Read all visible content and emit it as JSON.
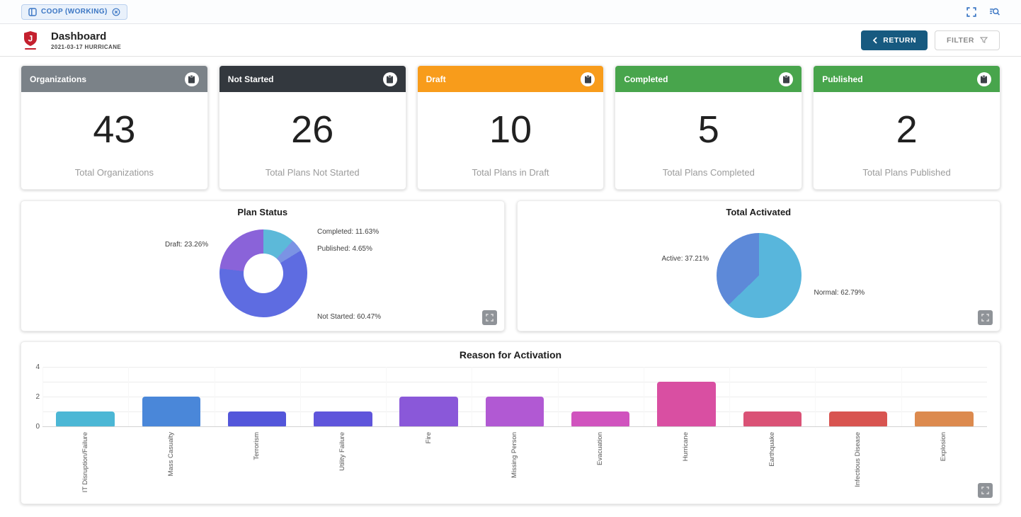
{
  "topbar": {
    "chip_label": "COOP (WORKING)",
    "icons": {
      "chip_leading": "layout-grid",
      "chip_trailing": "close-circle",
      "right_1": "fullscreen",
      "right_2": "search-preview"
    }
  },
  "header": {
    "title": "Dashboard",
    "subtitle": "2021-03-17 HURRICANE",
    "return_label": "RETURN",
    "filter_label": "FILTER"
  },
  "stats": [
    {
      "title": "Organizations",
      "value": "43",
      "label": "Total Organizations",
      "color": "#7b8288"
    },
    {
      "title": "Not Started",
      "value": "26",
      "label": "Total Plans Not Started",
      "color": "#33383e"
    },
    {
      "title": "Draft",
      "value": "10",
      "label": "Total Plans in Draft",
      "color": "#f89c1b"
    },
    {
      "title": "Completed",
      "value": "5",
      "label": "Total Plans Completed",
      "color": "#48a54c"
    },
    {
      "title": "Published",
      "value": "2",
      "label": "Total Plans Published",
      "color": "#48a54c"
    }
  ],
  "chart_data": [
    {
      "type": "pie",
      "title": "Plan Status",
      "donut": true,
      "legend_position": "none",
      "slices": [
        {
          "label": "Completed",
          "value": 11.63,
          "color": "#5cb9d9",
          "text": "Completed: 11.63%"
        },
        {
          "label": "Published",
          "value": 4.65,
          "color": "#7b93e4",
          "text": "Published: 4.65%"
        },
        {
          "label": "Not Started",
          "value": 60.47,
          "color": "#5e6ce1",
          "text": "Not Started: 60.47%"
        },
        {
          "label": "Draft",
          "value": 23.26,
          "color": "#8a63d9",
          "text": "Draft: 23.26%"
        }
      ]
    },
    {
      "type": "pie",
      "title": "Total Activated",
      "donut": false,
      "legend_position": "none",
      "slices": [
        {
          "label": "Normal",
          "value": 62.79,
          "color": "#58b6dc",
          "text": "Normal: 62.79%"
        },
        {
          "label": "Active",
          "value": 37.21,
          "color": "#5d89d8",
          "text": "Active: 37.21%"
        }
      ]
    },
    {
      "type": "bar",
      "title": "Reason for Activation",
      "categories": [
        "IT Disruption/Failure",
        "Mass Casualty",
        "Terrorism",
        "Utility Failure",
        "Fire",
        "Missing Person",
        "Evacuation",
        "Hurricane",
        "Earthquake",
        "Infectious Disease",
        "Explosion"
      ],
      "values": [
        1,
        2,
        1,
        1,
        2,
        2,
        1,
        3,
        1,
        1,
        1
      ],
      "colors": [
        "#4cb7d5",
        "#4a87d9",
        "#5356da",
        "#5f55db",
        "#8a58d9",
        "#b159d3",
        "#d053be",
        "#d94fa2",
        "#da5276",
        "#d85450",
        "#dc8a4e"
      ],
      "xlabel": "",
      "ylabel": "",
      "ylim": [
        0,
        4
      ],
      "yticks": [
        0,
        2,
        4
      ],
      "grid": true,
      "legend_position": "none"
    }
  ]
}
